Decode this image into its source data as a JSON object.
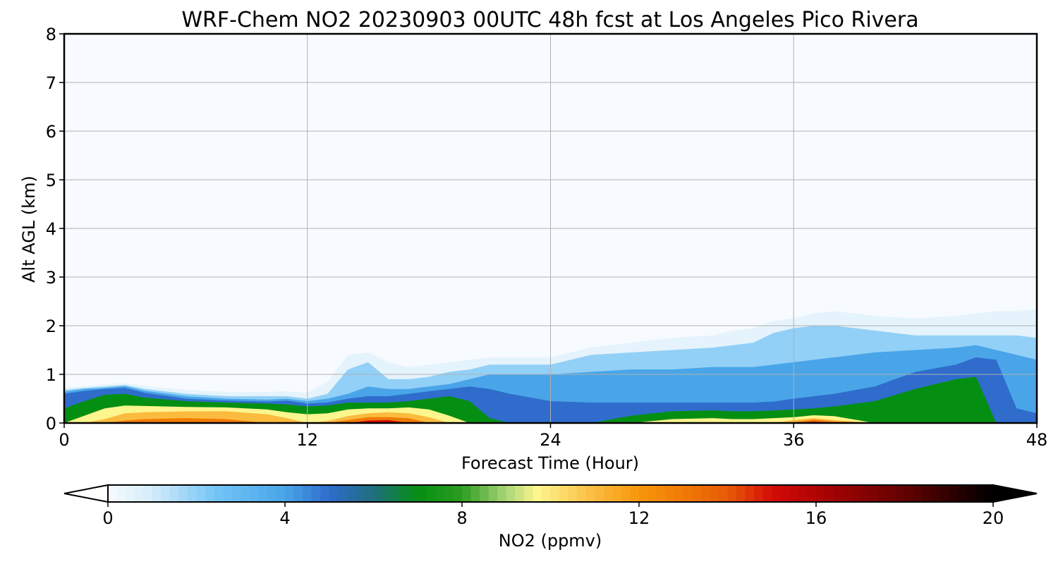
{
  "chart_data": {
    "type": "heatmap",
    "title": "WRF-Chem NO2  20230903 00UTC 48h fcst at Los Angeles Pico Rivera",
    "xlabel": "Forecast Time (Hour)",
    "ylabel": "Alt AGL (km)",
    "xlim": [
      0,
      48
    ],
    "ylim": [
      0,
      8
    ],
    "xticks": [
      "0",
      "12",
      "24",
      "36",
      "48"
    ],
    "yticks": [
      "0",
      "1",
      "2",
      "3",
      "4",
      "5",
      "6",
      "7",
      "8"
    ],
    "grid": true,
    "colorbar": {
      "label": "NO2  (ppmv)",
      "min": 0,
      "max": 20,
      "ticks": [
        "0",
        "4",
        "8",
        "12",
        "16",
        "20"
      ],
      "extend": "both",
      "orientation": "horizontal",
      "colors": {
        "0": "#f7fbff",
        "1": "#d3ebf9",
        "2.5": "#71c3f6",
        "4": "#49a5e8",
        "5": "#2f6ccc",
        "6": "#1f6e7e",
        "7": "#058f12",
        "8": "#2d9c1f",
        "9": "#a9d678",
        "9.7": "#fdf58e",
        "11": "#fbbb3e",
        "12": "#f8960a",
        "13": "#f07a06",
        "14": "#e85a06",
        "15": "#d30c06",
        "16": "#b00303",
        "18": "#620101",
        "20": "#000000"
      }
    },
    "depth_profiles": {
      "description_units": "km top of each NO2 level (ppmv) vs forecast hour",
      "hours": [
        0,
        1,
        2,
        3,
        4,
        6,
        8,
        10,
        11,
        12,
        13,
        14,
        15,
        16,
        17,
        18,
        19,
        20,
        21,
        22,
        24,
        26,
        28,
        30,
        32,
        33,
        34,
        35,
        36,
        37,
        38,
        40,
        42,
        44,
        45,
        46,
        47,
        48
      ],
      "levels": [
        {
          "value": 0.5,
          "tops": [
            0.72,
            0.76,
            0.8,
            0.82,
            0.76,
            0.68,
            0.64,
            0.64,
            0.65,
            0.62,
            0.85,
            1.4,
            1.45,
            1.25,
            1.15,
            1.2,
            1.25,
            1.3,
            1.35,
            1.35,
            1.35,
            1.55,
            1.65,
            1.75,
            1.8,
            1.9,
            1.95,
            2.1,
            2.15,
            2.25,
            2.3,
            2.2,
            2.15,
            2.2,
            2.25,
            2.3,
            2.3,
            2.35
          ]
        },
        {
          "value": 2.0,
          "tops": [
            0.68,
            0.72,
            0.75,
            0.78,
            0.7,
            0.6,
            0.55,
            0.55,
            0.55,
            0.5,
            0.6,
            1.1,
            1.25,
            0.9,
            0.9,
            0.95,
            1.05,
            1.1,
            1.2,
            1.2,
            1.2,
            1.4,
            1.45,
            1.5,
            1.55,
            1.6,
            1.65,
            1.85,
            1.95,
            2.0,
            2.0,
            1.9,
            1.8,
            1.8,
            1.8,
            1.8,
            1.8,
            1.75
          ]
        },
        {
          "value": 4.0,
          "tops": [
            0.64,
            0.7,
            0.72,
            0.76,
            0.66,
            0.55,
            0.5,
            0.48,
            0.5,
            0.45,
            0.5,
            0.6,
            0.75,
            0.7,
            0.7,
            0.75,
            0.8,
            0.9,
            1.0,
            1.0,
            1.0,
            1.05,
            1.1,
            1.1,
            1.15,
            1.15,
            1.15,
            1.2,
            1.25,
            1.3,
            1.35,
            1.45,
            1.5,
            1.55,
            1.6,
            1.5,
            1.4,
            1.3
          ]
        },
        {
          "value": 5.0,
          "tops": [
            0.6,
            0.66,
            0.7,
            0.72,
            0.62,
            0.5,
            0.46,
            0.44,
            0.46,
            0.4,
            0.42,
            0.5,
            0.55,
            0.55,
            0.6,
            0.65,
            0.7,
            0.75,
            0.7,
            0.6,
            0.45,
            0.42,
            0.42,
            0.42,
            0.42,
            0.42,
            0.42,
            0.44,
            0.5,
            0.55,
            0.6,
            0.75,
            1.05,
            1.2,
            1.35,
            1.3,
            0.3,
            0.2
          ]
        },
        {
          "value": 7.0,
          "tops": [
            0.3,
            0.45,
            0.58,
            0.6,
            0.52,
            0.45,
            0.42,
            0.4,
            0.38,
            0.34,
            0.36,
            0.42,
            0.42,
            0.42,
            0.45,
            0.5,
            0.55,
            0.45,
            0.1,
            0.0,
            0.0,
            0.0,
            0.15,
            0.24,
            0.26,
            0.24,
            0.24,
            0.26,
            0.28,
            0.3,
            0.34,
            0.45,
            0.7,
            0.9,
            0.95,
            0.0,
            0.0,
            0.0
          ]
        },
        {
          "value": 9.7,
          "tops": [
            0.0,
            0.15,
            0.3,
            0.36,
            0.35,
            0.33,
            0.32,
            0.28,
            0.22,
            0.18,
            0.2,
            0.28,
            0.3,
            0.3,
            0.32,
            0.28,
            0.15,
            0.0,
            0.0,
            0.0,
            0.0,
            0.0,
            0.0,
            0.08,
            0.1,
            0.08,
            0.08,
            0.1,
            0.12,
            0.16,
            0.14,
            0.0,
            0.0,
            0.0,
            0.0,
            0.0,
            0.0,
            0.0
          ]
        },
        {
          "value": 11.0,
          "tops": [
            0.0,
            0.0,
            0.08,
            0.2,
            0.22,
            0.24,
            0.24,
            0.18,
            0.1,
            0.0,
            0.04,
            0.14,
            0.2,
            0.22,
            0.2,
            0.12,
            0.0,
            0.0,
            0.0,
            0.0,
            0.0,
            0.0,
            0.0,
            0.0,
            0.0,
            0.0,
            0.0,
            0.0,
            0.06,
            0.1,
            0.06,
            0.0,
            0.0,
            0.0,
            0.0,
            0.0,
            0.0,
            0.0
          ]
        },
        {
          "value": 13.0,
          "tops": [
            0.0,
            0.0,
            0.0,
            0.05,
            0.08,
            0.1,
            0.08,
            0.0,
            0.0,
            0.0,
            0.0,
            0.06,
            0.12,
            0.12,
            0.1,
            0.0,
            0.0,
            0.0,
            0.0,
            0.0,
            0.0,
            0.0,
            0.0,
            0.0,
            0.0,
            0.0,
            0.0,
            0.0,
            0.02,
            0.07,
            0.03,
            0.0,
            0.0,
            0.0,
            0.0,
            0.0,
            0.0,
            0.0
          ]
        },
        {
          "value": 15.0,
          "tops": [
            0.0,
            0.0,
            0.0,
            0.0,
            0.0,
            0.0,
            0.0,
            0.0,
            0.0,
            0.0,
            0.0,
            0.0,
            0.05,
            0.06,
            0.0,
            0.0,
            0.0,
            0.0,
            0.0,
            0.0,
            0.0,
            0.0,
            0.0,
            0.0,
            0.0,
            0.0,
            0.0,
            0.0,
            0.0,
            0.03,
            0.0,
            0.0,
            0.0,
            0.0,
            0.0,
            0.0,
            0.0,
            0.0
          ]
        }
      ]
    }
  }
}
